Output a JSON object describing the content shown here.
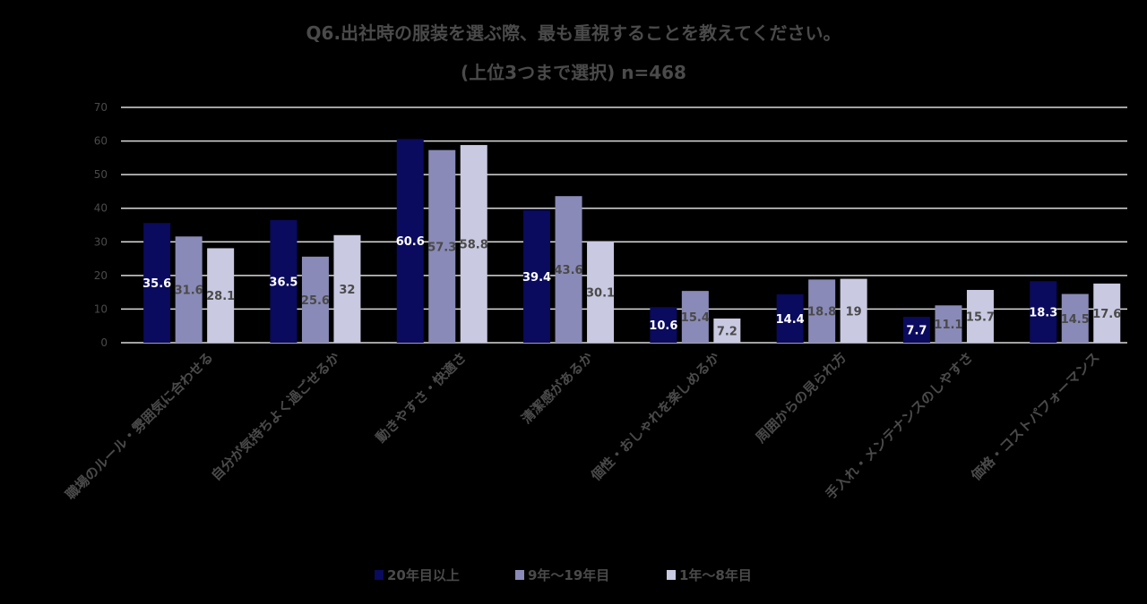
{
  "chart_data": {
    "type": "bar",
    "title": "Q6.出社時の服装を選ぶ際、最も重視することを教えてください。",
    "subtitle": "(上位3つまで選択) n=468",
    "xlabel": "",
    "ylabel": "",
    "ylim": [
      0,
      70
    ],
    "yticks": [
      0,
      10,
      20,
      30,
      40,
      50,
      60,
      70
    ],
    "grid": true,
    "legend_position": "bottom",
    "categories": [
      "職場のルール・雰囲気に合わせる",
      "自分が気持ちよく過ごせるか",
      "動きやすさ・快適さ",
      "清潔感があるか",
      "個性・おしゃれを楽しめるか",
      "周囲からの見られ方",
      "手入れ・メンテナンスのしやすさ",
      "価格・コストパフォーマンス"
    ],
    "series": [
      {
        "name": "20年目以上",
        "color": "#0a0a5e",
        "label_color": "#ffffff",
        "values": [
          35.6,
          36.5,
          60.6,
          39.4,
          10.6,
          14.4,
          7.7,
          18.3
        ]
      },
      {
        "name": "9年～19年目",
        "color": "#8a8ab8",
        "label_color": "#4a4a4a",
        "values": [
          31.6,
          25.6,
          57.3,
          43.6,
          15.4,
          18.8,
          11.1,
          14.5
        ]
      },
      {
        "name": "1年～8年目",
        "color": "#c9c9e2",
        "label_color": "#4a4a4a",
        "values": [
          28.1,
          32,
          58.8,
          30.1,
          7.2,
          19,
          15.7,
          17.6
        ]
      }
    ]
  }
}
